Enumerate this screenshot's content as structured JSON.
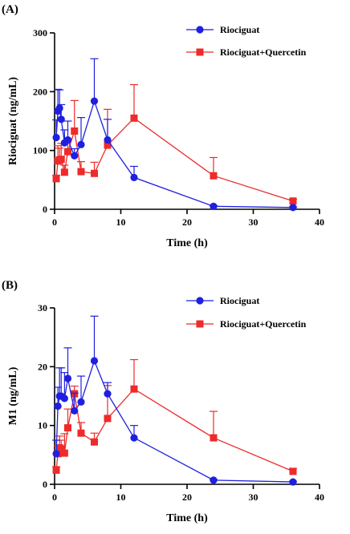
{
  "chart_data": [
    {
      "panel_label": "(A)",
      "type": "line",
      "xlabel": "Time (h)",
      "ylabel": "Riociguat (ng/mL)",
      "xlim": [
        0,
        40
      ],
      "ylim": [
        0,
        300
      ],
      "x_ticks": [
        "0",
        "10",
        "20",
        "30",
        "40"
      ],
      "y_ticks": [
        "0",
        "100",
        "200",
        "300"
      ],
      "grid": false,
      "legend_position": "top-right",
      "series": [
        {
          "name": "Riociguat",
          "color": "#1f1fe0",
          "marker": "circle",
          "x": [
            0.25,
            0.5,
            0.75,
            1,
            1.5,
            2,
            3,
            4,
            6,
            8,
            12,
            24,
            36
          ],
          "y": [
            122,
            167,
            172,
            153,
            113,
            118,
            91,
            110,
            184,
            118,
            54,
            5,
            3
          ],
          "error_upper": [
            152,
            204,
            203,
            178,
            135,
            150,
            103,
            156,
            256,
            153,
            73,
            6,
            4
          ]
        },
        {
          "name": "Riociguat+Quercetin",
          "color": "#ee2a2a",
          "marker": "square",
          "x": [
            0.25,
            0.5,
            0.75,
            1,
            1.5,
            2,
            3,
            4,
            6,
            8,
            12,
            24,
            36
          ],
          "y": [
            52,
            82,
            84,
            85,
            63,
            98,
            133,
            64,
            61,
            109,
            155,
            57,
            14
          ],
          "error_upper": [
            58,
            108,
            104,
            112,
            75,
            120,
            185,
            81,
            80,
            170,
            212,
            88,
            17
          ]
        }
      ]
    },
    {
      "panel_label": "(B)",
      "type": "line",
      "xlabel": "Time (h)",
      "ylabel": "M1 (ng/mL)",
      "xlim": [
        0,
        40
      ],
      "ylim": [
        0,
        30
      ],
      "x_ticks": [
        "0",
        "10",
        "20",
        "30",
        "40"
      ],
      "y_ticks": [
        "0",
        "10",
        "20",
        "30"
      ],
      "grid": false,
      "legend_position": "top-right",
      "series": [
        {
          "name": "Riociguat",
          "color": "#1f1fe0",
          "marker": "circle",
          "x": [
            0.25,
            0.5,
            0.75,
            1,
            1.5,
            2,
            3,
            4,
            6,
            8,
            12,
            24,
            36
          ],
          "y": [
            5.2,
            13.3,
            15.0,
            15.0,
            14.6,
            18.0,
            12.5,
            14.0,
            21.0,
            15.4,
            7.9,
            0.7,
            0.4
          ],
          "error_upper": [
            7.5,
            16.5,
            19.8,
            19.8,
            19.0,
            23.2,
            15.5,
            18.4,
            28.6,
            17.3,
            10.0,
            0.8,
            0.5
          ]
        },
        {
          "name": "Riociguat+Quercetin",
          "color": "#ee2a2a",
          "marker": "square",
          "x": [
            0.25,
            0.5,
            0.75,
            1,
            1.5,
            2,
            3,
            4,
            6,
            8,
            12,
            24,
            36
          ],
          "y": [
            2.4,
            5.2,
            6.2,
            6.0,
            5.3,
            9.6,
            15.4,
            8.7,
            7.2,
            11.2,
            16.2,
            7.9,
            2.2
          ],
          "error_upper": [
            3.0,
            6.5,
            8.2,
            7.5,
            8.6,
            12.8,
            16.7,
            10.5,
            8.7,
            16.8,
            21.2,
            12.4,
            2.7
          ]
        }
      ]
    }
  ]
}
